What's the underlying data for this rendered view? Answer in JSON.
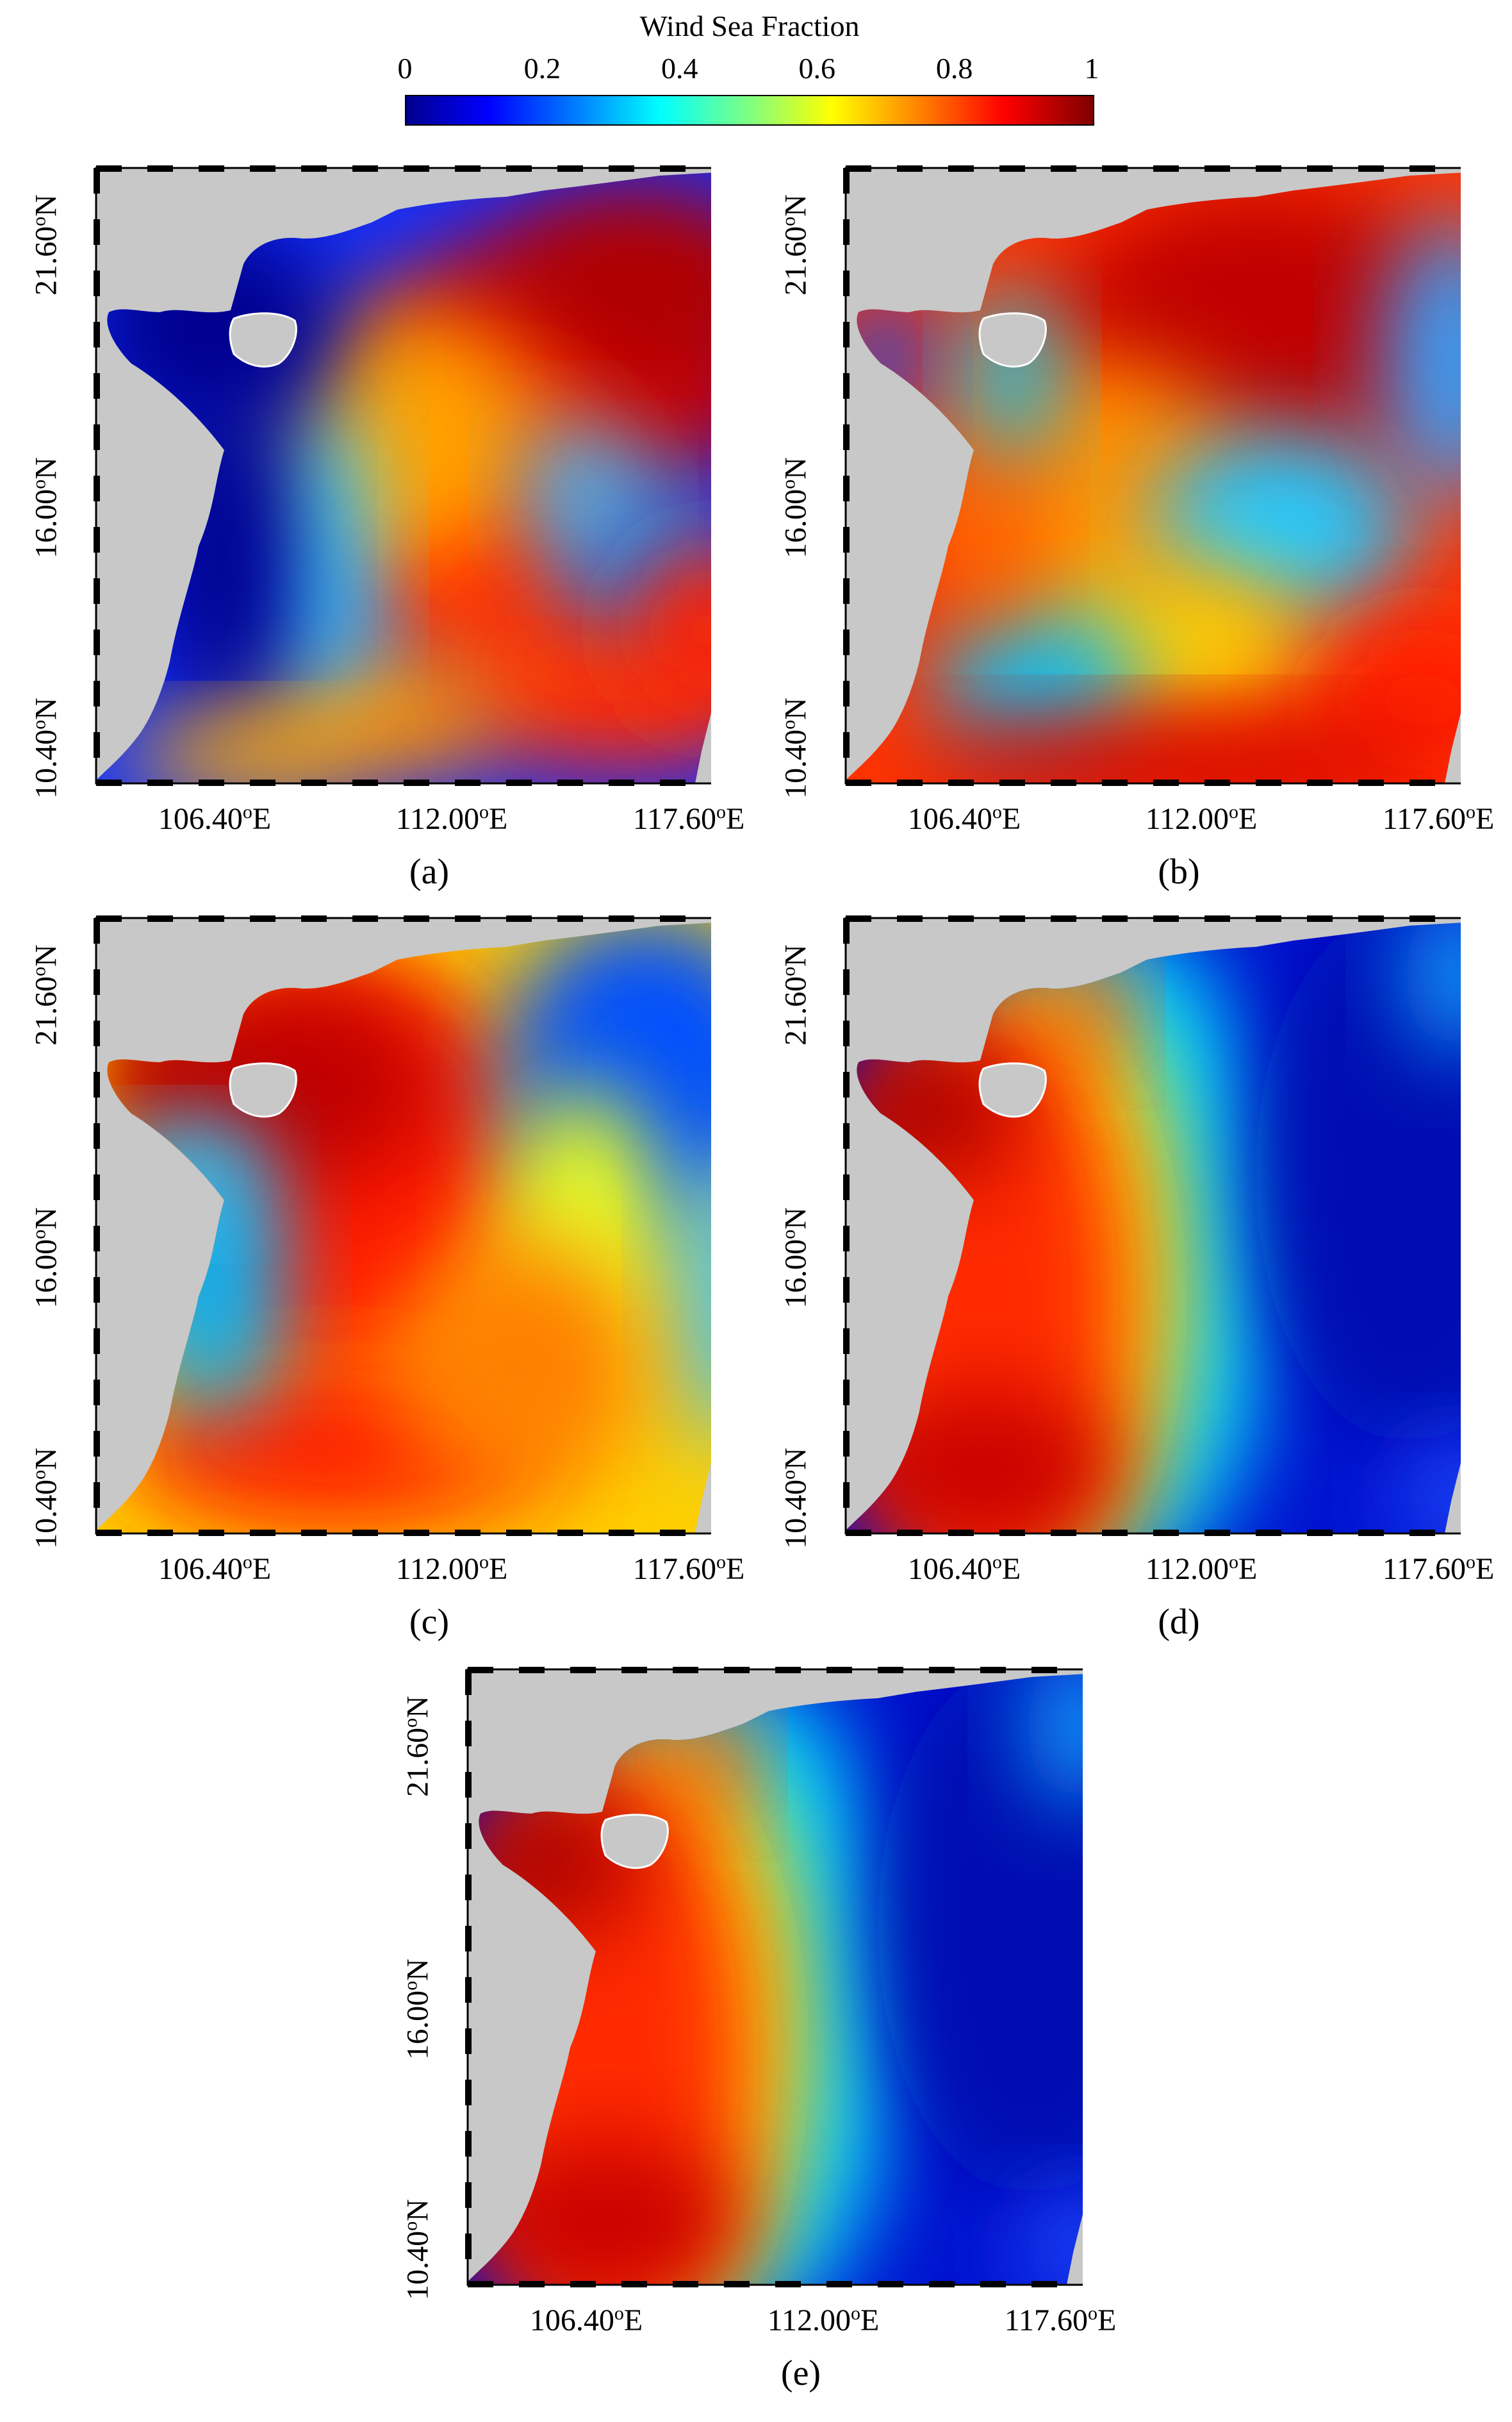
{
  "colorbar": {
    "title": "Wind Sea Fraction",
    "ticks": [
      "0",
      "0.2",
      "0.4",
      "0.6",
      "0.8",
      "1"
    ]
  },
  "axes": {
    "y": [
      {
        "deg": "10.40",
        "dir": "N"
      },
      {
        "deg": "16.00",
        "dir": "N"
      },
      {
        "deg": "21.60",
        "dir": "N"
      }
    ],
    "x": [
      {
        "deg": "106.40",
        "dir": "E"
      },
      {
        "deg": "112.00",
        "dir": "E"
      },
      {
        "deg": "117.60",
        "dir": "E"
      }
    ]
  },
  "colors": {
    "land": "#c8c8c8",
    "low": "#00008f",
    "high": "#b30000"
  },
  "panels": [
    {
      "label": "(a)",
      "pattern": "a"
    },
    {
      "label": "(b)",
      "pattern": "b"
    },
    {
      "label": "(c)",
      "pattern": "c"
    },
    {
      "label": "(d)",
      "pattern": "d"
    },
    {
      "label": "(e)",
      "pattern": "d"
    }
  ]
}
